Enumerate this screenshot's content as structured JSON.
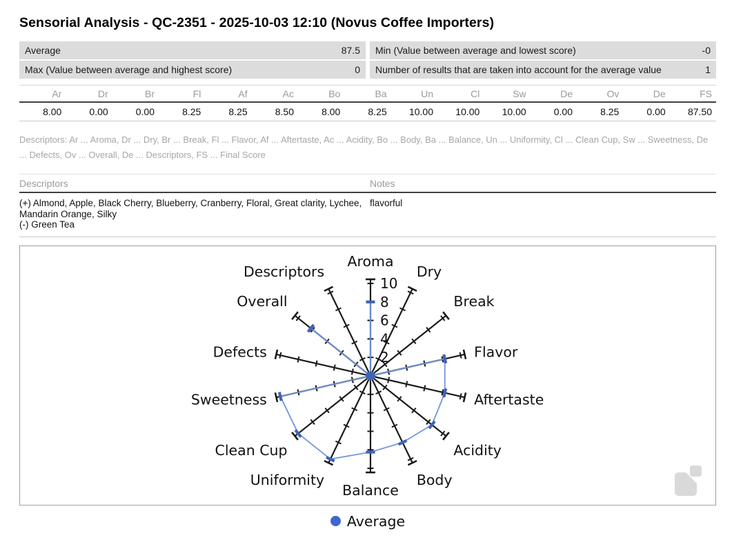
{
  "title": "Sensorial Analysis - QC-2351 - 2025-10-03 12:10 (Novus Coffee Importers)",
  "summary": {
    "rows": [
      {
        "left_label": "Average",
        "left_value": "87.5",
        "right_label": "Min (Value between average and lowest score)",
        "right_value": "-0"
      },
      {
        "left_label": "Max (Value between average and highest score)",
        "left_value": "0",
        "right_label": "Number of results that are taken into account for the average value",
        "right_value": "1"
      }
    ]
  },
  "scores": {
    "headers": [
      "Ar",
      "Dr",
      "Br",
      "Fl",
      "Af",
      "Ac",
      "Bo",
      "Ba",
      "Un",
      "Cl",
      "Sw",
      "De",
      "Ov",
      "De",
      "FS"
    ],
    "values": [
      "8.00",
      "0.00",
      "0.00",
      "8.25",
      "8.25",
      "8.50",
      "8.00",
      "8.25",
      "10.00",
      "10.00",
      "10.00",
      "0.00",
      "8.25",
      "0.00",
      "87.50"
    ]
  },
  "abbreviation_legend": "Descriptors: Ar ... Aroma, Dr ... Dry, Br ... Break, Fl ... Flavor, Af ... Aftertaste, Ac ... Acidity, Bo ... Body, Ba ... Balance, Un ... Uniformity, Cl ... Clean Cup, Sw ... Sweetness, De ... Defects, Ov ... Overall, De ... Descriptors, FS ... Final Score",
  "descriptors_table": {
    "descriptors_header": "Descriptors",
    "notes_header": "Notes",
    "positive_descriptors": "(+) Almond, Apple, Black Cherry, Blueberry, Cranberry, Floral, Great clarity, Lychee, Mandarin Orange, Silky",
    "negative_descriptors": "(-) Green Tea",
    "notes": "flavorful"
  },
  "chart_data": {
    "type": "radar",
    "categories": [
      "Aroma",
      "Dry",
      "Break",
      "Flavor",
      "Aftertaste",
      "Acidity",
      "Body",
      "Balance",
      "Uniformity",
      "Clean Cup",
      "Sweetness",
      "Defects",
      "Overall",
      "Descriptors"
    ],
    "series": [
      {
        "name": "Average",
        "values": [
          8.0,
          0.0,
          0.0,
          8.25,
          8.25,
          8.5,
          8.0,
          8.25,
          10.0,
          10.0,
          10.0,
          0.0,
          8.25,
          0.0
        ]
      }
    ],
    "rmax": 10,
    "rticks": [
      2,
      4,
      6,
      8,
      10
    ],
    "axis_overshoot": 10.45,
    "grid": false,
    "legend_position": "bottom-center",
    "colors": {
      "axis": "#1a1a1a",
      "series_line": "#7295dd",
      "series_marker": "#3d64b8",
      "legend_dot": "#3e68cf",
      "watermark": "#d9d9d9"
    }
  }
}
